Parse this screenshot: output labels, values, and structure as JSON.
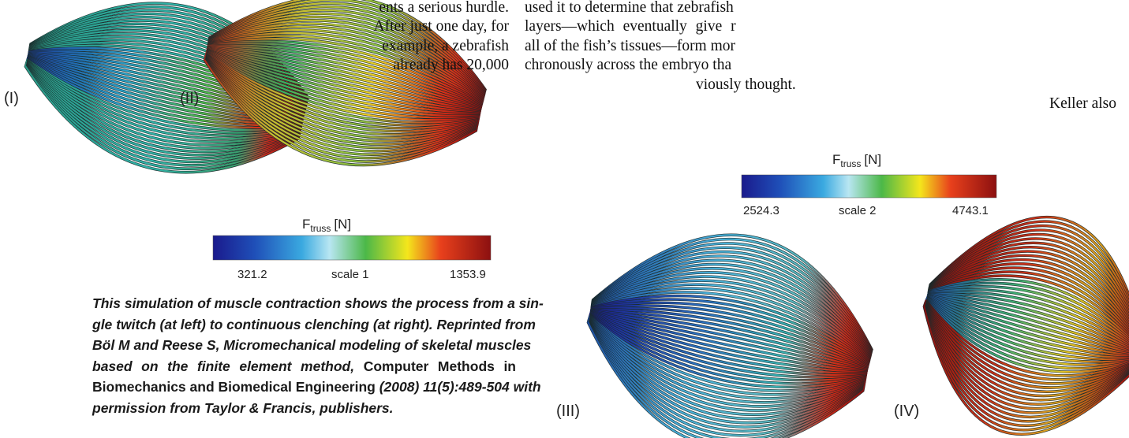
{
  "article": {
    "column_1": [
      "ents a serious hurdle.",
      "After just one day, for",
      "example, a zebrafish",
      "already has 20,000"
    ],
    "column_2": [
      "used it to determine that zebrafish",
      "layers—which eventually give r",
      "all of the fish’s tissues—form mor",
      "chronously across the embryo tha",
      "viously thought.",
      "Keller also"
    ]
  },
  "figure": {
    "panels": [
      "(I)",
      "(II)",
      "(III)",
      "(IV)"
    ],
    "colorbars": [
      {
        "symbol": "F",
        "subscript": "truss",
        "unit": "[N]",
        "min": "321.2",
        "label": "scale 1",
        "max": "1353.9"
      },
      {
        "symbol": "F",
        "subscript": "truss",
        "unit": "[N]",
        "min": "2524.3",
        "label": "scale 2",
        "max": "4743.1"
      }
    ]
  },
  "caption": {
    "lines": [
      [
        {
          "text": "This simulation of muscle contraction shows the process from a sin-",
          "style": "italic"
        }
      ],
      [
        {
          "text": "gle twitch (at left) to continuous clenching (at right). Reprinted from",
          "style": "italic"
        }
      ],
      [
        {
          "text": "Böl M and Reese S, Micromechanical modeling of skeletal muscles",
          "style": "italic"
        }
      ],
      [
        {
          "text": "based on the finite element method,",
          "style": "italic"
        },
        {
          "text": "Computer Methods in",
          "style": "normal"
        }
      ],
      [
        {
          "text": "Biomechanics and Biomedical Engineering",
          "style": "normal"
        },
        {
          "text": "(2008) 11(5):489-504 with",
          "style": "italic"
        }
      ],
      [
        {
          "text": "permission from Taylor & Francis, publishers.",
          "style": "italic"
        }
      ]
    ]
  }
}
